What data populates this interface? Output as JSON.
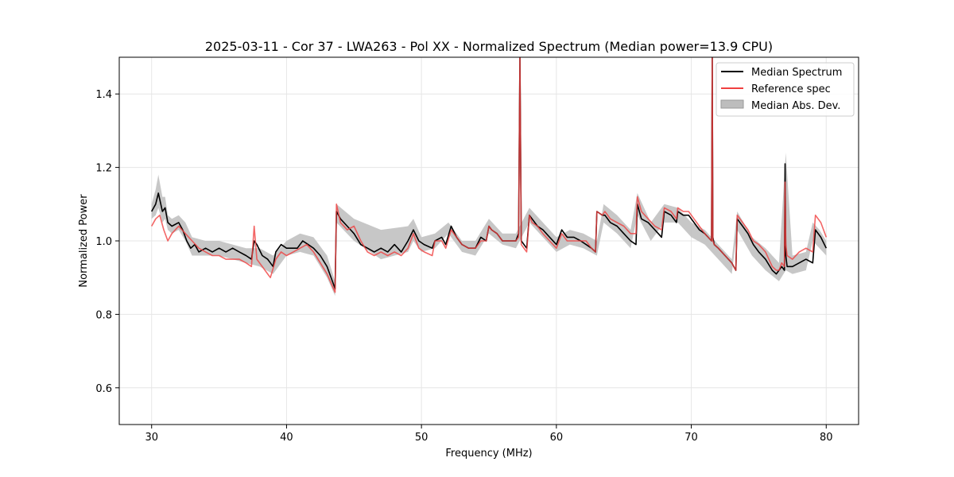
{
  "chart_data": {
    "type": "line",
    "title": "2025-03-11 - Cor 37 - LWA263 - Pol XX - Normalized Spectrum (Median power=13.9 CPU)",
    "xlabel": "Frequency (MHz)",
    "ylabel": "Normalized Power",
    "xlim": [
      27.6,
      82.4
    ],
    "ylim": [
      0.5,
      1.5
    ],
    "xticks": [
      30,
      40,
      50,
      60,
      70,
      80
    ],
    "yticks": [
      0.6,
      0.8,
      1.0,
      1.2,
      1.4
    ],
    "grid": true,
    "legend_position": "top-right",
    "legend": [
      "Median Spectrum",
      "Reference spec",
      "Median Abs. Dev."
    ],
    "colors": {
      "median": "#000000",
      "reference": "#f04040",
      "mad": "#bdbdbd"
    },
    "series": [
      {
        "name": "Median Spectrum",
        "x": [
          30.0,
          30.3,
          30.5,
          30.8,
          31.0,
          31.2,
          31.5,
          32.0,
          32.3,
          32.6,
          32.9,
          33.2,
          33.5,
          34.0,
          34.5,
          35.0,
          35.5,
          36.0,
          36.5,
          37.0,
          37.4,
          37.6,
          37.8,
          38.2,
          38.6,
          38.8,
          39.0,
          39.2,
          39.6,
          40.0,
          40.4,
          40.8,
          41.2,
          41.6,
          42.0,
          42.5,
          43.0,
          43.6,
          43.7,
          44.0,
          44.5,
          45.0,
          45.5,
          46.0,
          46.5,
          47.0,
          47.5,
          48.0,
          48.5,
          49.0,
          49.4,
          49.8,
          50.2,
          50.8,
          51.0,
          51.5,
          51.8,
          52.2,
          52.6,
          53.0,
          53.5,
          54.0,
          54.4,
          54.8,
          55.0,
          55.2,
          55.6,
          56.0,
          56.5,
          57.0,
          57.2,
          57.3,
          57.4,
          57.8,
          58.0,
          58.2,
          58.6,
          59.0,
          59.5,
          60.0,
          60.3,
          60.4,
          60.8,
          61.3,
          61.8,
          62.2,
          62.6,
          62.9,
          63.0,
          63.4,
          63.6,
          64.0,
          64.5,
          65.0,
          65.5,
          65.9,
          66.0,
          66.3,
          66.8,
          67.3,
          67.8,
          68.0,
          68.5,
          68.9,
          69.0,
          69.4,
          69.8,
          70.2,
          70.6,
          71.0,
          71.5,
          71.55,
          71.6,
          71.7,
          72.0,
          72.5,
          73.0,
          73.3,
          73.4,
          73.8,
          74.2,
          74.6,
          75.0,
          75.5,
          76.0,
          76.3,
          76.5,
          76.7,
          76.9,
          76.95,
          77.0,
          77.1,
          77.5,
          78.0,
          78.5,
          79.0,
          79.2,
          79.6,
          80.0
        ],
        "values": [
          1.08,
          1.1,
          1.13,
          1.08,
          1.09,
          1.05,
          1.04,
          1.05,
          1.03,
          1.0,
          0.98,
          0.99,
          0.97,
          0.98,
          0.97,
          0.98,
          0.97,
          0.98,
          0.97,
          0.96,
          0.95,
          1.0,
          0.99,
          0.96,
          0.95,
          0.94,
          0.93,
          0.97,
          0.99,
          0.98,
          0.98,
          0.98,
          1.0,
          0.99,
          0.98,
          0.96,
          0.93,
          0.87,
          1.08,
          1.06,
          1.04,
          1.02,
          0.99,
          0.98,
          0.97,
          0.98,
          0.97,
          0.99,
          0.97,
          1.0,
          1.03,
          1.0,
          0.99,
          0.98,
          1.0,
          1.01,
          0.99,
          1.04,
          1.01,
          0.99,
          0.98,
          0.98,
          1.01,
          1.0,
          1.04,
          1.03,
          1.02,
          1.0,
          1.0,
          1.0,
          1.02,
          1.5,
          1.0,
          0.98,
          1.07,
          1.06,
          1.04,
          1.03,
          1.01,
          0.99,
          1.02,
          1.03,
          1.01,
          1.01,
          1.0,
          0.99,
          0.98,
          0.97,
          1.08,
          1.07,
          1.07,
          1.05,
          1.04,
          1.02,
          1.0,
          0.99,
          1.1,
          1.06,
          1.05,
          1.03,
          1.01,
          1.08,
          1.07,
          1.05,
          1.08,
          1.07,
          1.07,
          1.05,
          1.03,
          1.02,
          1.0,
          1.5,
          1.01,
          0.99,
          0.98,
          0.96,
          0.94,
          0.92,
          1.06,
          1.04,
          1.02,
          0.99,
          0.97,
          0.95,
          0.92,
          0.91,
          0.92,
          0.93,
          0.92,
          1.21,
          0.96,
          0.93,
          0.93,
          0.94,
          0.95,
          0.94,
          1.03,
          1.01,
          0.98
        ]
      },
      {
        "name": "Reference spec",
        "x": [
          30.0,
          30.3,
          30.6,
          30.9,
          31.2,
          31.5,
          32.0,
          32.5,
          33.0,
          33.5,
          34.0,
          34.5,
          35.0,
          35.5,
          36.0,
          36.5,
          37.0,
          37.4,
          37.6,
          37.8,
          38.2,
          38.6,
          38.8,
          39.2,
          39.6,
          40.0,
          40.5,
          41.0,
          41.5,
          42.0,
          42.5,
          43.0,
          43.6,
          43.7,
          44.0,
          44.5,
          45.0,
          45.5,
          46.0,
          46.5,
          47.0,
          47.5,
          48.0,
          48.5,
          49.0,
          49.4,
          49.8,
          50.2,
          50.8,
          51.0,
          51.5,
          51.8,
          52.2,
          52.6,
          53.0,
          53.5,
          54.0,
          54.4,
          54.8,
          55.0,
          55.2,
          55.6,
          56.0,
          56.5,
          57.0,
          57.2,
          57.3,
          57.4,
          57.8,
          58.0,
          58.2,
          58.6,
          59.0,
          59.5,
          60.0,
          60.3,
          60.4,
          60.8,
          61.3,
          61.8,
          62.2,
          62.6,
          62.9,
          63.0,
          63.4,
          63.6,
          64.0,
          64.5,
          65.0,
          65.5,
          65.9,
          66.0,
          66.3,
          66.8,
          67.3,
          67.8,
          68.0,
          68.5,
          68.9,
          69.0,
          69.4,
          69.8,
          70.2,
          70.6,
          71.0,
          71.5,
          71.55,
          71.6,
          71.7,
          72.0,
          72.5,
          73.0,
          73.3,
          73.4,
          73.8,
          74.2,
          74.6,
          75.0,
          75.5,
          76.0,
          76.3,
          76.5,
          76.7,
          76.9,
          76.95,
          77.0,
          77.1,
          77.5,
          78.0,
          78.5,
          79.0,
          79.2,
          79.6,
          80.0
        ],
        "values": [
          1.04,
          1.06,
          1.07,
          1.03,
          1.0,
          1.02,
          1.04,
          1.02,
          1.0,
          0.98,
          0.97,
          0.96,
          0.96,
          0.95,
          0.95,
          0.95,
          0.94,
          0.93,
          1.04,
          0.95,
          0.93,
          0.91,
          0.9,
          0.95,
          0.97,
          0.96,
          0.97,
          0.98,
          0.99,
          0.97,
          0.94,
          0.91,
          0.86,
          1.1,
          1.05,
          1.03,
          1.04,
          1.0,
          0.97,
          0.96,
          0.97,
          0.96,
          0.97,
          0.96,
          0.98,
          1.02,
          0.98,
          0.97,
          0.96,
          1.0,
          1.0,
          0.98,
          1.03,
          1.01,
          0.99,
          0.98,
          0.98,
          1.0,
          1.0,
          1.04,
          1.03,
          1.02,
          1.0,
          1.0,
          1.0,
          1.01,
          1.5,
          0.99,
          0.97,
          1.07,
          1.05,
          1.04,
          1.02,
          1.0,
          0.98,
          1.01,
          1.02,
          1.0,
          1.0,
          1.0,
          1.0,
          0.98,
          0.97,
          1.08,
          1.07,
          1.08,
          1.06,
          1.05,
          1.04,
          1.02,
          1.02,
          1.12,
          1.08,
          1.06,
          1.04,
          1.03,
          1.09,
          1.08,
          1.06,
          1.09,
          1.08,
          1.08,
          1.06,
          1.04,
          1.02,
          1.0,
          1.5,
          1.0,
          0.99,
          0.98,
          0.96,
          0.94,
          0.92,
          1.07,
          1.05,
          1.03,
          1.0,
          0.99,
          0.97,
          0.93,
          0.92,
          0.92,
          0.94,
          0.93,
          1.16,
          0.99,
          0.96,
          0.95,
          0.97,
          0.98,
          0.97,
          1.07,
          1.05,
          1.01
        ]
      }
    ],
    "mad_band": {
      "name": "Median Abs. Dev.",
      "x": [
        30.0,
        30.3,
        30.5,
        30.8,
        31.0,
        31.2,
        31.5,
        32.0,
        32.5,
        33.0,
        34.0,
        35.0,
        36.0,
        37.0,
        38.0,
        39.0,
        40.0,
        41.0,
        42.0,
        43.0,
        43.6,
        43.7,
        45.0,
        47.0,
        49.0,
        49.4,
        50.0,
        51.0,
        52.0,
        53.0,
        54.0,
        55.0,
        56.0,
        57.0,
        58.0,
        59.0,
        60.0,
        61.0,
        62.0,
        63.0,
        63.5,
        64.5,
        65.5,
        66.0,
        67.0,
        68.0,
        69.0,
        70.0,
        71.0,
        72.0,
        73.0,
        73.4,
        74.5,
        75.5,
        76.5,
        77.0,
        77.5,
        78.5,
        79.0,
        79.5,
        80.0
      ],
      "lower": [
        1.06,
        1.07,
        1.09,
        1.05,
        1.06,
        1.03,
        1.02,
        1.03,
        1.0,
        0.96,
        0.96,
        0.96,
        0.95,
        0.94,
        0.93,
        0.91,
        0.96,
        0.97,
        0.96,
        0.9,
        0.85,
        1.05,
        1.0,
        0.95,
        0.97,
        1.0,
        0.97,
        0.98,
        1.02,
        0.97,
        0.96,
        1.02,
        0.99,
        0.98,
        1.05,
        1.01,
        0.97,
        0.99,
        0.98,
        0.96,
        1.05,
        1.02,
        0.98,
        1.07,
        1.0,
        1.05,
        1.05,
        1.01,
        0.99,
        0.95,
        0.91,
        1.03,
        0.96,
        0.92,
        0.89,
        0.92,
        0.91,
        0.92,
        1.0,
        0.98,
        0.96
      ],
      "upper": [
        1.1,
        1.14,
        1.18,
        1.12,
        1.12,
        1.07,
        1.06,
        1.07,
        1.05,
        1.01,
        1.0,
        1.0,
        0.99,
        0.98,
        0.98,
        0.96,
        1.0,
        1.02,
        1.01,
        0.96,
        0.89,
        1.1,
        1.06,
        1.03,
        1.04,
        1.06,
        1.01,
        1.02,
        1.05,
        1.0,
        1.0,
        1.06,
        1.02,
        1.02,
        1.09,
        1.05,
        1.01,
        1.03,
        1.02,
        1.0,
        1.1,
        1.07,
        1.03,
        1.13,
        1.05,
        1.1,
        1.09,
        1.05,
        1.03,
        0.99,
        0.95,
        1.08,
        1.01,
        0.98,
        0.94,
        1.24,
        0.96,
        0.97,
        1.05,
        1.03,
        1.0
      ]
    }
  }
}
